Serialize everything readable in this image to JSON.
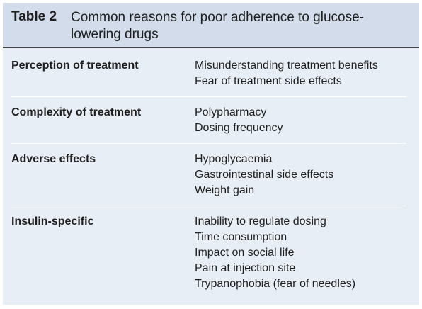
{
  "header": {
    "label": "Table 2",
    "title": "Common reasons for poor adherence to glucose-lowering drugs"
  },
  "rows": [
    {
      "category": "Perception of treatment",
      "items": [
        "Misunderstanding treatment benefits",
        "Fear of treatment side effects"
      ]
    },
    {
      "category": "Complexity of treatment",
      "items": [
        "Polypharmacy",
        "Dosing frequency"
      ]
    },
    {
      "category": "Adverse effects",
      "items": [
        "Hypoglycaemia",
        "Gastrointestinal side effects",
        "Weight gain"
      ]
    },
    {
      "category": "Insulin-specific",
      "items": [
        "Inability to regulate dosing",
        "Time consumption",
        "Impact on social life",
        "Pain at injection site",
        "Trypanophobia (fear of needles)"
      ]
    }
  ],
  "colors": {
    "header_background": "#d2dcea",
    "body_background": "#e8eef6",
    "rule": "#3b4047",
    "divider": "#ffffff"
  }
}
